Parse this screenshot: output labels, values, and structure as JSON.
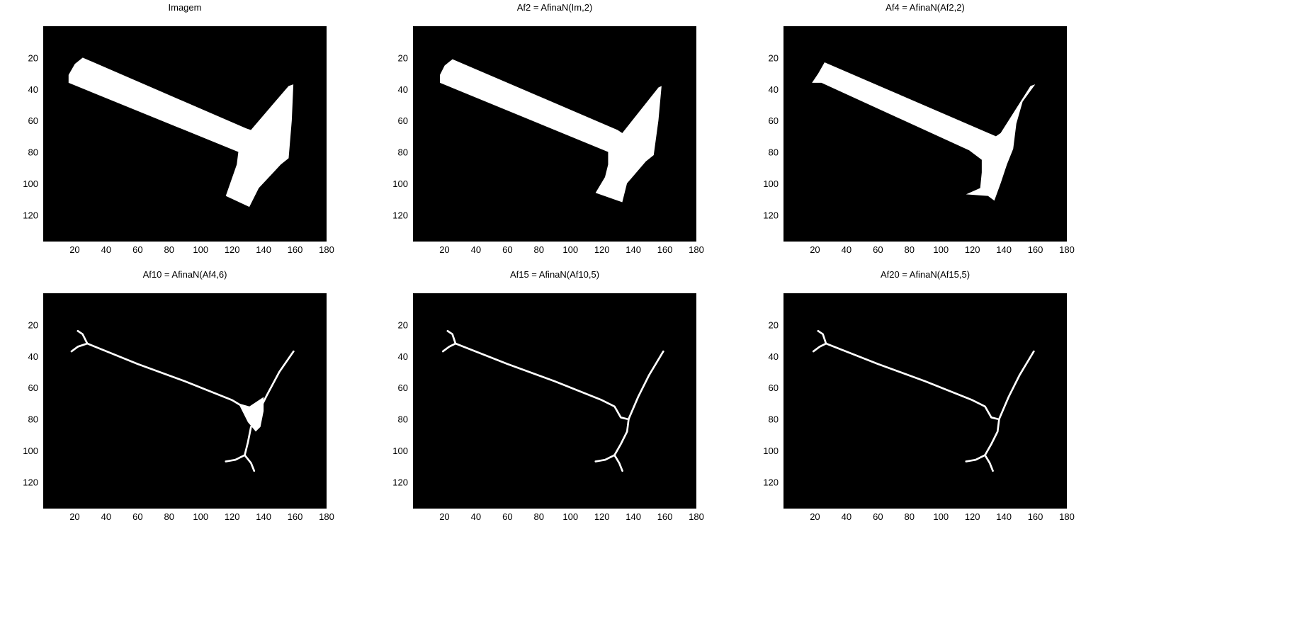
{
  "figure": {
    "background": "#ffffff",
    "image_background": "#000000",
    "foreground": "#ffffff"
  },
  "panels": [
    {
      "id": "im",
      "title": "Imagem"
    },
    {
      "id": "af2",
      "title": "Af2 = AfinaN(Im,2)"
    },
    {
      "id": "af4",
      "title": "Af4 = AfinaN(Af2,2)"
    },
    {
      "id": "af10",
      "title": "Af10 = AfinaN(Af4,6)"
    },
    {
      "id": "af15",
      "title": "Af15 = AfinaN(Af10,5)"
    },
    {
      "id": "af20",
      "title": "Af20 = AfinaN(Af15,5)"
    }
  ],
  "axes": {
    "xticks": [
      "20",
      "40",
      "60",
      "80",
      "100",
      "120",
      "140",
      "160",
      "180"
    ],
    "yticks": [
      "20",
      "40",
      "60",
      "80",
      "100",
      "120"
    ],
    "xlim": [
      0,
      180
    ],
    "ylim": [
      0,
      137
    ]
  }
}
